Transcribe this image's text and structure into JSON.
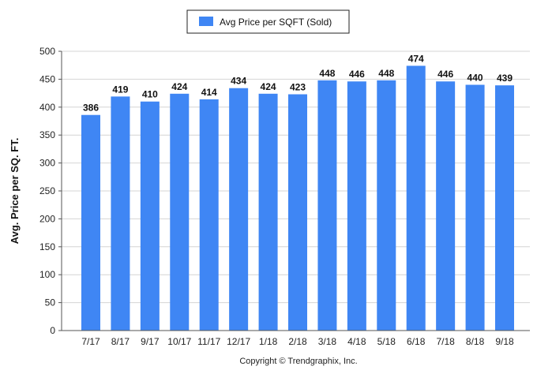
{
  "chart_data": {
    "type": "bar",
    "categories": [
      "7/17",
      "8/17",
      "9/17",
      "10/17",
      "11/17",
      "12/17",
      "1/18",
      "2/18",
      "3/18",
      "4/18",
      "5/18",
      "6/18",
      "7/18",
      "8/18",
      "9/18"
    ],
    "series": [
      {
        "name": "Avg Price per SQFT (Sold)",
        "values": [
          386,
          419,
          410,
          424,
          414,
          434,
          424,
          423,
          448,
          446,
          448,
          474,
          446,
          440,
          439
        ],
        "value_labels": [
          "386",
          "419",
          "410",
          "424",
          "414",
          "434",
          "424",
          "423",
          "448",
          "446",
          "448",
          "474",
          "446",
          "440",
          "439"
        ],
        "color": "#3f86f4"
      }
    ],
    "title": "",
    "xlabel": "",
    "ylabel": "Avg. Price per SQ. FT.",
    "ylim": [
      0,
      500
    ],
    "yticks": [
      0,
      50,
      100,
      150,
      200,
      250,
      300,
      350,
      400,
      450,
      500
    ],
    "ytick_labels": [
      "0",
      "50",
      "100",
      "150",
      "200",
      "250",
      "300",
      "350",
      "400",
      "450",
      "500"
    ],
    "grid": true,
    "legend_position": "top-center",
    "footer": "Copyright © Trendgraphix, Inc."
  },
  "colors": {
    "bar": "#3f86f4",
    "grid": "#d4d4d4",
    "axis": "#555555",
    "background": "#ffffff"
  }
}
